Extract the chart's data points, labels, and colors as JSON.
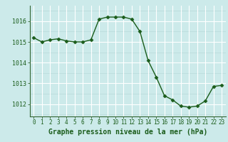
{
  "x": [
    0,
    1,
    2,
    3,
    4,
    5,
    6,
    7,
    8,
    9,
    10,
    11,
    12,
    13,
    14,
    15,
    16,
    17,
    18,
    19,
    20,
    21,
    22,
    23
  ],
  "y": [
    1015.2,
    1015.0,
    1015.1,
    1015.15,
    1015.05,
    1015.0,
    1015.0,
    1015.1,
    1016.1,
    1016.2,
    1016.2,
    1016.2,
    1016.1,
    1015.5,
    1014.1,
    1013.3,
    1012.4,
    1012.2,
    1011.9,
    1011.85,
    1011.9,
    1012.15,
    1012.85,
    1012.9
  ],
  "line_color": "#1a5c1a",
  "marker": "D",
  "marker_size": 2.5,
  "bg_color": "#cceaea",
  "grid_color_white": "#ffffff",
  "grid_color_light": "#b8dada",
  "xlabel": "Graphe pression niveau de la mer (hPa)",
  "xlabel_fontsize": 7,
  "ylabel_ticks": [
    1012,
    1013,
    1014,
    1015,
    1016
  ],
  "ylim": [
    1011.4,
    1016.75
  ],
  "xlim": [
    -0.5,
    23.5
  ],
  "tick_fontsize": 6,
  "label_color": "#1a5c1a",
  "spine_color": "#336633"
}
